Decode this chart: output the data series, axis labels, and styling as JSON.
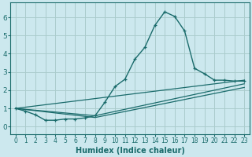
{
  "xlabel": "Humidex (Indice chaleur)",
  "bg_color": "#cce8ee",
  "grid_color": "#aacccc",
  "line_color": "#1a6b6b",
  "xlim": [
    -0.5,
    23.5
  ],
  "ylim": [
    -0.4,
    6.8
  ],
  "xticks": [
    0,
    1,
    2,
    3,
    4,
    5,
    6,
    7,
    8,
    9,
    10,
    11,
    12,
    13,
    14,
    15,
    16,
    17,
    18,
    19,
    20,
    21,
    22,
    23
  ],
  "yticks": [
    0,
    1,
    2,
    3,
    4,
    5,
    6
  ],
  "series1_x": [
    0,
    1,
    2,
    3,
    4,
    5,
    6,
    7,
    8,
    9,
    10,
    11,
    12,
    13,
    14,
    15,
    16,
    17,
    18,
    19,
    20,
    21,
    22,
    23
  ],
  "series1_y": [
    1.0,
    0.85,
    0.65,
    0.35,
    0.35,
    0.42,
    0.42,
    0.48,
    0.6,
    1.35,
    2.2,
    2.6,
    3.7,
    4.35,
    5.55,
    6.3,
    6.05,
    5.25,
    3.2,
    2.9,
    2.55,
    2.55,
    2.5,
    2.5
  ],
  "line2_x": [
    0,
    23
  ],
  "line2_y": [
    1.0,
    2.55
  ],
  "line3_x": [
    0,
    8,
    23
  ],
  "line3_y": [
    1.0,
    0.6,
    2.35
  ],
  "line4_x": [
    0,
    8,
    23
  ],
  "line4_y": [
    1.0,
    0.5,
    2.15
  ],
  "xlabel_fontsize": 7,
  "xlabel_fontweight": "bold",
  "tick_fontsize_x": 5.5,
  "tick_fontsize_y": 6.5
}
